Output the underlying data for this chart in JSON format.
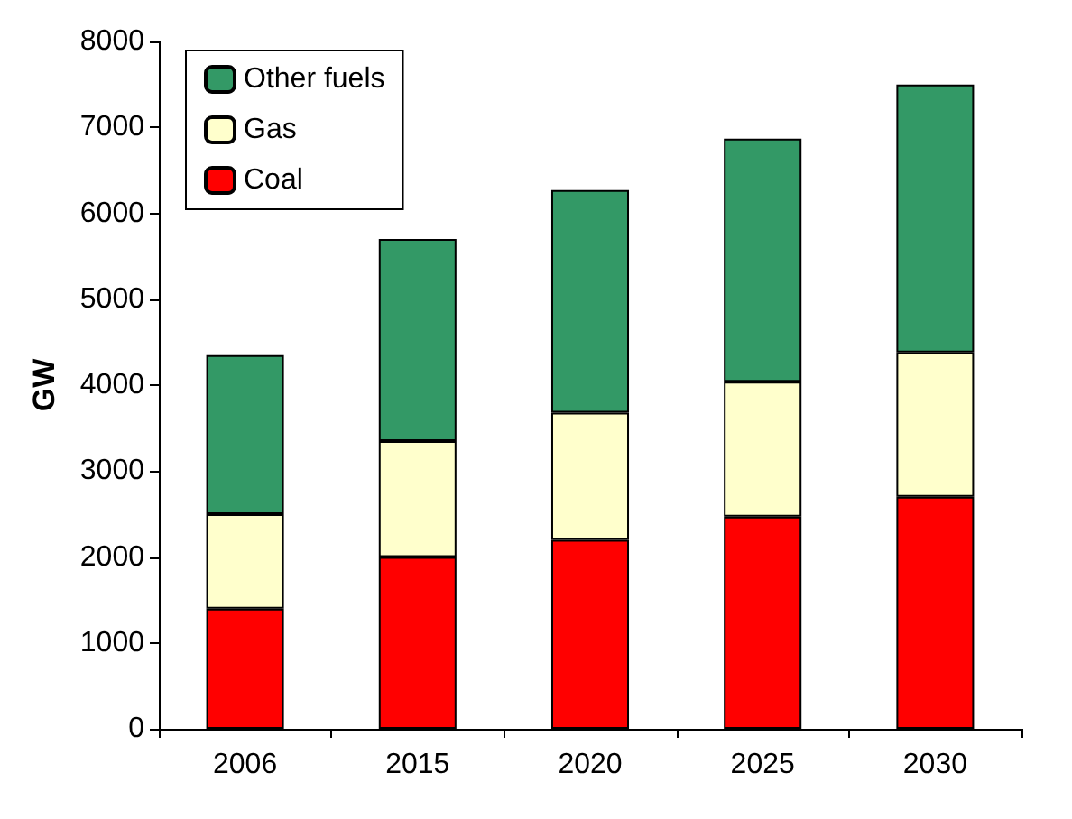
{
  "chart_data": {
    "type": "bar",
    "stacked": true,
    "ylabel": "GW",
    "categories": [
      "2006",
      "2015",
      "2020",
      "2025",
      "2030"
    ],
    "series": [
      {
        "name": "Coal",
        "color": "#ff0000",
        "values": [
          1400,
          2000,
          2200,
          2470,
          2700
        ]
      },
      {
        "name": "Gas",
        "color": "#ffffcc",
        "values": [
          1100,
          1350,
          1480,
          1570,
          1680
        ]
      },
      {
        "name": "Other fuels",
        "color": "#339966",
        "values": [
          1850,
          2350,
          2590,
          2830,
          3120
        ]
      }
    ],
    "ylim": [
      0,
      8000
    ],
    "yticks": [
      0,
      1000,
      2000,
      3000,
      4000,
      5000,
      6000,
      7000,
      8000
    ],
    "grid": false,
    "legend": "top left"
  }
}
